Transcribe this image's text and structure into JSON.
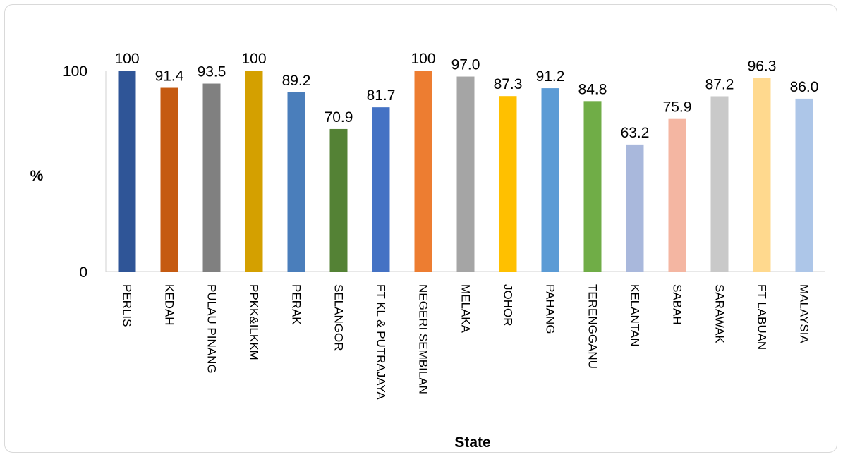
{
  "chart_data": {
    "type": "bar",
    "xlabel": "State",
    "ylabel": "%",
    "ylim": [
      0,
      100
    ],
    "yticks": [
      "0",
      "100"
    ],
    "grid": false,
    "categories": [
      "PERLIS",
      "KEDAH",
      "PULAU PINANG",
      "PPKK&ILKKM",
      "PERAK",
      "SELANGOR",
      "FT KL & PUTRAJAYA",
      "NEGERI SEMBILAN",
      "MELAKA",
      "JOHOR",
      "PAHANG",
      "TERENGGANU",
      "KELANTAN",
      "SABAH",
      "SARAWAK",
      "FT LABUAN",
      "MALAYSIA"
    ],
    "values": [
      100,
      91.4,
      93.5,
      100,
      89.2,
      70.9,
      81.7,
      100,
      97.0,
      87.3,
      91.2,
      84.8,
      63.2,
      75.9,
      87.2,
      96.3,
      86.0
    ],
    "value_labels": [
      "100",
      "91.4",
      "93.5",
      "100",
      "89.2",
      "70.9",
      "81.7",
      "100",
      "97.0",
      "87.3",
      "91.2",
      "84.8",
      "63.2",
      "75.9",
      "87.2",
      "96.3",
      "86.0"
    ],
    "colors": [
      "#2F5597",
      "#C55A11",
      "#808080",
      "#D4A000",
      "#4A7EBB",
      "#548235",
      "#4472C4",
      "#ED7D31",
      "#A5A5A5",
      "#FFC000",
      "#5B9BD5",
      "#70AD47",
      "#A9B8DC",
      "#F4B6A2",
      "#C9C9C9",
      "#FFD98E",
      "#ADC6E8"
    ]
  }
}
